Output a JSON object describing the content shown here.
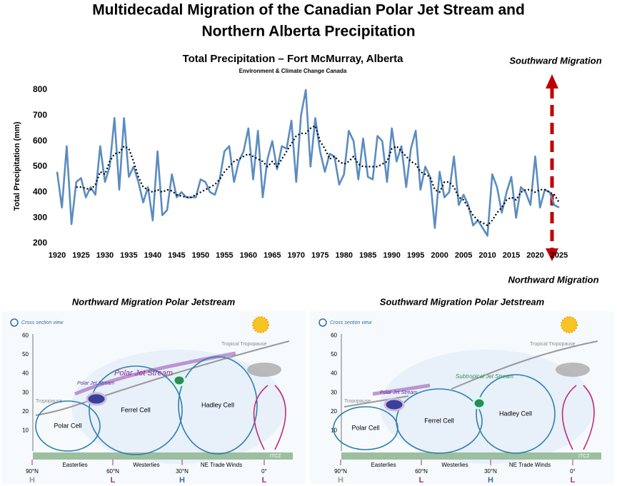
{
  "header": {
    "title": [
      "Multidecadal Migration of the Canadian Polar Jet Stream and",
      "Northern Alberta Precipitation"
    ]
  },
  "chart_data": {
    "type": "line",
    "title": "Total Precipitation – Fort McMurray, Alberta",
    "subtitle": "Environment & Climate Change Canada",
    "y_label": "Total Precipitation (mm)",
    "x": [
      1920,
      1921,
      1922,
      1923,
      1924,
      1925,
      1926,
      1927,
      1928,
      1929,
      1930,
      1931,
      1932,
      1933,
      1934,
      1935,
      1936,
      1937,
      1938,
      1939,
      1940,
      1941,
      1942,
      1943,
      1944,
      1945,
      1946,
      1947,
      1948,
      1949,
      1950,
      1951,
      1952,
      1953,
      1954,
      1955,
      1956,
      1957,
      1958,
      1959,
      1960,
      1961,
      1962,
      1963,
      1964,
      1965,
      1966,
      1967,
      1968,
      1969,
      1970,
      1971,
      1972,
      1973,
      1974,
      1975,
      1976,
      1977,
      1978,
      1979,
      1980,
      1981,
      1982,
      1983,
      1984,
      1985,
      1986,
      1987,
      1988,
      1989,
      1990,
      1991,
      1992,
      1993,
      1994,
      1995,
      1996,
      1997,
      1998,
      1999,
      2000,
      2001,
      2002,
      2003,
      2004,
      2005,
      2006,
      2007,
      2008,
      2009,
      2010,
      2011,
      2012,
      2013,
      2014,
      2015,
      2016,
      2017,
      2018,
      2019,
      2020,
      2021,
      2022,
      2023,
      2024,
      2025
    ],
    "series": [
      {
        "color": "#5b8cc0",
        "line_style": "solid",
        "values": [
          480,
          340,
          580,
          275,
          440,
          455,
          380,
          420,
          390,
          580,
          440,
          500,
          690,
          410,
          690,
          460,
          500,
          440,
          360,
          420,
          290,
          560,
          310,
          330,
          470,
          380,
          400,
          380,
          380,
          380,
          450,
          440,
          400,
          390,
          450,
          560,
          580,
          440,
          520,
          560,
          650,
          450,
          640,
          380,
          530,
          600,
          490,
          580,
          570,
          680,
          440,
          700,
          800,
          500,
          690,
          560,
          480,
          550,
          540,
          430,
          470,
          640,
          600,
          450,
          610,
          460,
          450,
          620,
          600,
          440,
          650,
          520,
          580,
          420,
          570,
          640,
          410,
          500,
          460,
          260,
          480,
          380,
          400,
          540,
          350,
          390,
          350,
          270,
          290,
          260,
          230,
          470,
          420,
          320,
          400,
          460,
          300,
          420,
          400,
          350,
          540,
          340,
          410,
          400,
          350,
          340
        ]
      },
      {
        "color": "#000000",
        "line_style": "dotted",
        "values": [
          null,
          null,
          null,
          null,
          420,
          420,
          415,
          410,
          430,
          480,
          470,
          520,
          550,
          555,
          580,
          570,
          520,
          460,
          420,
          410,
          400,
          410,
          400,
          410,
          405,
          390,
          385,
          380,
          380,
          390,
          400,
          410,
          420,
          430,
          450,
          480,
          500,
          520,
          530,
          540,
          550,
          540,
          530,
          520,
          500,
          520,
          500,
          530,
          560,
          590,
          620,
          630,
          630,
          650,
          660,
          600,
          570,
          530,
          540,
          520,
          510,
          520,
          540,
          510,
          500,
          500,
          500,
          500,
          510,
          520,
          570,
          580,
          560,
          540,
          520,
          510,
          480,
          470,
          460,
          410,
          400,
          440,
          440,
          420,
          380,
          370,
          340,
          310,
          290,
          280,
          270,
          290,
          320,
          340,
          370,
          380,
          370,
          400,
          410,
          410,
          400,
          410,
          410,
          400,
          390,
          360
        ]
      }
    ],
    "xlim": [
      1920,
      2025
    ],
    "xticks": [
      1920,
      1925,
      1930,
      1935,
      1940,
      1945,
      1950,
      1955,
      1960,
      1965,
      1970,
      1975,
      1980,
      1985,
      1990,
      1995,
      2000,
      2005,
      2010,
      2015,
      2020,
      2025
    ],
    "ylim": [
      200,
      800
    ],
    "yticks": [
      200,
      300,
      400,
      500,
      600,
      700,
      800
    ],
    "grid": false
  },
  "migration": {
    "top": "Southward Migration",
    "bottom": "Northward Migration"
  },
  "diagrams": [
    {
      "title": "Northward Migration Polar Jetstream",
      "view": "Cross section view",
      "altitudes": [
        10,
        20,
        30,
        40,
        50,
        60
      ],
      "tropical_tropopause": "Tropical Tropopause",
      "tropopause": "Tropopause",
      "jets": [
        "Polar Jet Stream",
        "Polar Jet Stream"
      ],
      "cells": [
        "Polar Cell",
        "Ferrel Cell",
        "Hadley Cell"
      ],
      "winds": [
        "Easterlies",
        "Westerlies",
        "NE Trade Winds"
      ],
      "itcz": "ITCZ",
      "latitudes": [
        "90°N",
        "60°N",
        "30°N",
        "0°"
      ],
      "pressures": [
        "H",
        "L",
        "H",
        "L"
      ]
    },
    {
      "title": "Southward Migration Polar Jetstream",
      "view": "Cross section view",
      "altitudes": [
        10,
        20,
        30,
        40,
        50,
        60
      ],
      "tropical_tropopause": "Tropical Tropopause",
      "tropopause": "Tropopause",
      "jets": [
        "Polar Jet Stream",
        "Subtropical Jet Stream"
      ],
      "cells": [
        "Polar Cell",
        "Ferrel Cell",
        "Hadley Cell"
      ],
      "winds": [
        "Easterlies",
        "Westerlies",
        "NE Trade Winds"
      ],
      "itcz": "ITCZ",
      "latitudes": [
        "90°N",
        "60°N",
        "30°N",
        "0°"
      ],
      "pressures": [
        "H",
        "L",
        "H",
        "L"
      ]
    }
  ]
}
